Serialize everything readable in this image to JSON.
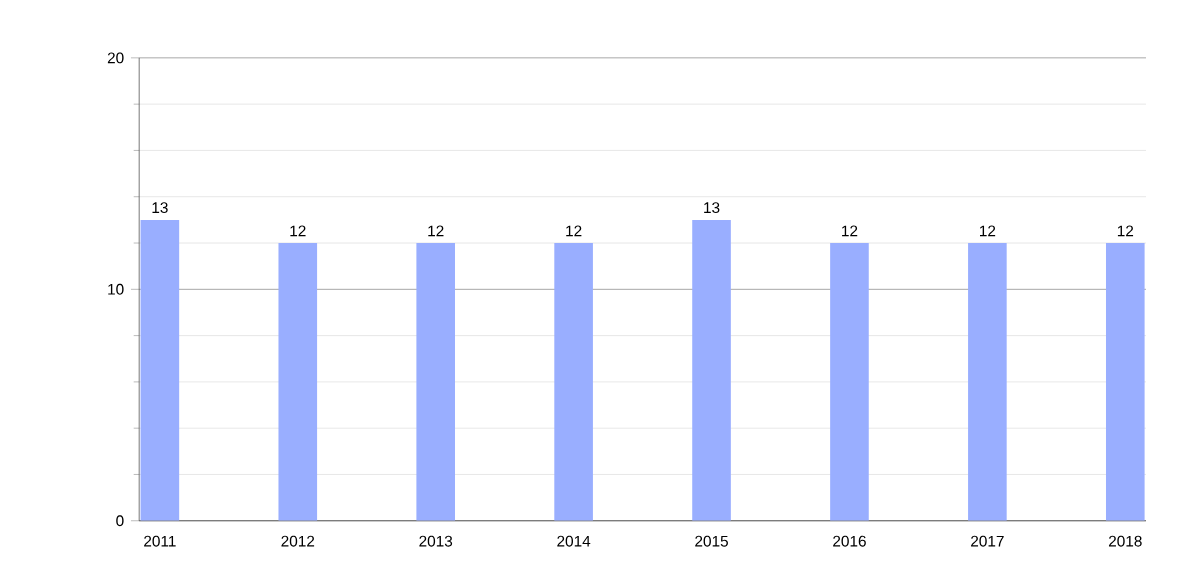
{
  "chart_data": {
    "type": "bar",
    "categories": [
      "2011",
      "2012",
      "2013",
      "2014",
      "2015",
      "2016",
      "2017",
      "2018"
    ],
    "values": [
      13,
      12,
      12,
      12,
      13,
      12,
      12,
      12
    ],
    "color": "#99aeff",
    "ylim": [
      0,
      20
    ],
    "yticks": [
      0,
      10,
      20
    ],
    "grid": "y",
    "data_labels": true
  }
}
